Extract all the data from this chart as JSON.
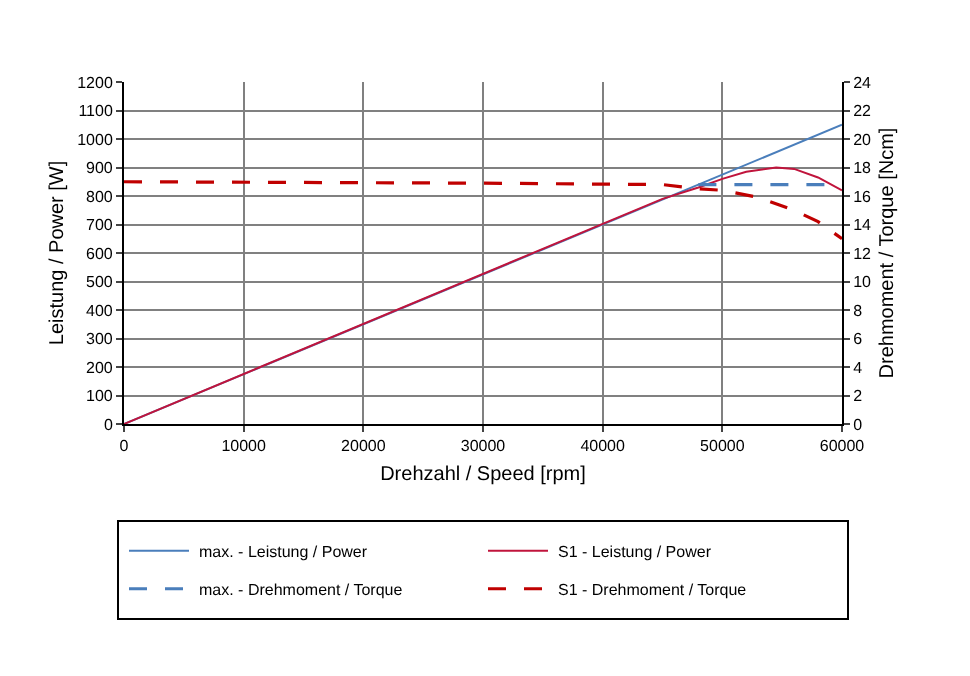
{
  "chart_data": {
    "type": "line",
    "xlabel": "Drehzahl / Speed [rpm]",
    "ylabel": "Leistung / Power [W]",
    "y2label": "Drehmoment / Torque [Ncm]",
    "xlim": [
      0,
      60000
    ],
    "xticks": [
      0,
      10000,
      20000,
      30000,
      40000,
      50000,
      60000
    ],
    "ylim": [
      0,
      1200
    ],
    "yticks": [
      0,
      100,
      200,
      300,
      400,
      500,
      600,
      700,
      800,
      900,
      1000,
      1100,
      1200
    ],
    "y2lim": [
      0,
      24
    ],
    "y2ticks": [
      0,
      2,
      4,
      6,
      8,
      10,
      12,
      14,
      16,
      18,
      20,
      22,
      24
    ],
    "grid": true,
    "legend": "bottom",
    "marker": "none",
    "series": [
      {
        "name": "max. - Leistung / Power",
        "color": "#4a7ebb",
        "line_style": "solid",
        "x": [
          0,
          60000
        ],
        "values": [
          0,
          1050
        ]
      },
      {
        "name": "S1 - Leistung / Power",
        "color": "#c0143c",
        "line_style": "solid",
        "x": [
          0,
          45000,
          48000,
          50000,
          52000,
          54500,
          56000,
          58000,
          60000
        ],
        "values": [
          0,
          790,
          830,
          860,
          885,
          900,
          895,
          865,
          820
        ]
      },
      {
        "name": "max. - Drehmoment / Torque",
        "color": "#4a7ebb",
        "line_style": "dashed",
        "axis": "y2",
        "x": [
          48000,
          60000
        ],
        "values": [
          16.8,
          16.8
        ]
      },
      {
        "name": "S1 - Drehmoment / Torque",
        "color": "#c00000",
        "line_style": "dashed",
        "axis": "y2",
        "x": [
          0,
          30000,
          45000,
          48000,
          50000,
          53000,
          56000,
          58000,
          60000
        ],
        "values": [
          17,
          16.9,
          16.8,
          16.5,
          16.4,
          15.9,
          15,
          14.2,
          13
        ]
      }
    ]
  }
}
